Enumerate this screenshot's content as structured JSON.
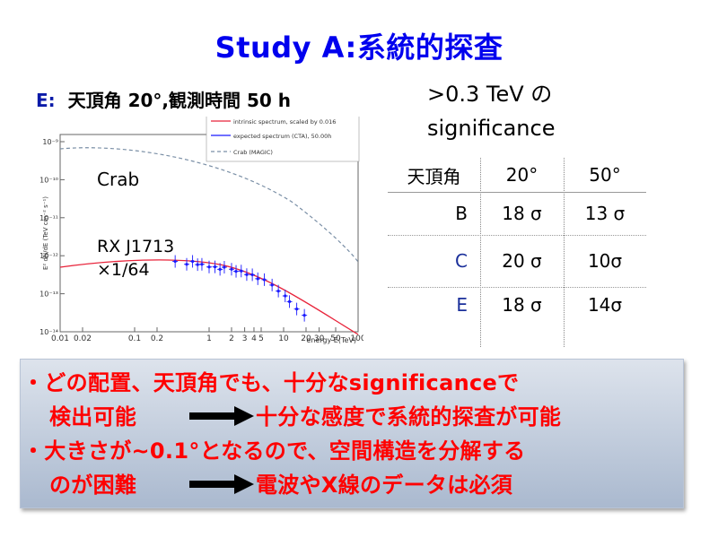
{
  "title": "Study A:系統的探査",
  "subtitle": {
    "lead": "E:",
    "rest": "天頂角 20°,観測時間 50 h"
  },
  "significance_heading": {
    "line1": ">0.3 TeV の",
    "line2": "significance"
  },
  "chart": {
    "legend": [
      "intrinsic spectrum, scaled by 0.016",
      "expected spectrum (CTA), 50.00h",
      "Crab (MAGIC)"
    ],
    "y_axis_label": "E² dN/dE (TeV cm⁻² s⁻¹)",
    "x_axis_label": "energy E(TeV)",
    "x_ticks": [
      "0.01",
      "0.02",
      "0.1",
      "0.2",
      "1",
      "2",
      "3",
      "4",
      "5",
      "10",
      "20",
      "30",
      "50",
      "100"
    ],
    "y_ticks": [
      "10⁻⁹",
      "10⁻¹⁰",
      "10⁻¹¹",
      "10⁻¹²",
      "10⁻¹³",
      "10⁻¹⁴"
    ],
    "annotation_crab": "Crab",
    "annotation_rx_line1": "RX J1713",
    "annotation_rx_line2": "×1/64",
    "colors": {
      "intrinsic": "#e8233a",
      "expected": "#1a1aff",
      "crab": "#7a8fa6"
    }
  },
  "table": {
    "headers": [
      "天頂角",
      "20°",
      "50°"
    ],
    "rows": [
      {
        "source": "B",
        "v20": "18 σ",
        "v50": "13 σ",
        "color": "#000000"
      },
      {
        "source": "C",
        "v20": "20 σ",
        "v50": "10σ",
        "color": "#1a2f9a"
      },
      {
        "source": "E",
        "v20": "18 σ",
        "v50": "14σ",
        "color": "#1a2f9a"
      }
    ]
  },
  "callout": {
    "line1": "・どの配置、天頂角でも、十分なsignificanceで",
    "line2a": "検出可能",
    "line2b": "十分な感度で系統的探査が可能",
    "line3": "・大きさが~0.1°となるので、空間構造を分解する",
    "line4a": "のが困難",
    "line4b": "電波やX線のデータは必須",
    "text_color": "#ff0000"
  }
}
